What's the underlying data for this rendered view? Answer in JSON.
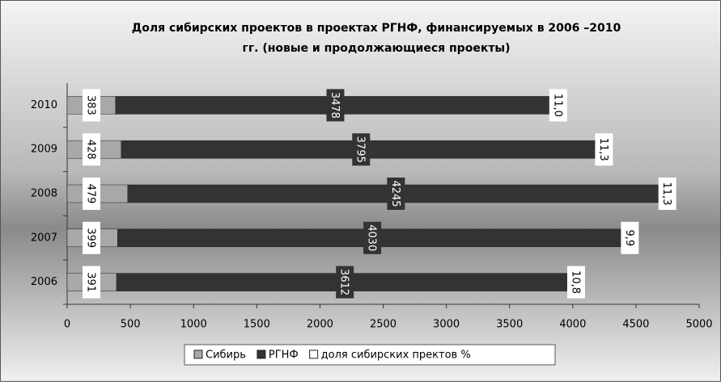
{
  "chart_data": {
    "type": "stacked-barh",
    "title": [
      "Доля сибирских проектов в проектах РГНФ, финансируемых в 2006 –2010",
      "гг. (новые и продолжающиеся проекты)"
    ],
    "categories": [
      "2006",
      "2007",
      "2008",
      "2009",
      "2010"
    ],
    "series": [
      {
        "name": "Сибирь",
        "color": "#a8a8a8",
        "values": [
          391,
          399,
          479,
          428,
          383
        ]
      },
      {
        "name": "РГНФ",
        "color": "#333333",
        "values": [
          3612,
          4030,
          4245,
          3795,
          3478
        ]
      },
      {
        "name": "доля сибирских пректов %",
        "color": "#ffffff",
        "values": [
          10.8,
          9.9,
          11.3,
          11.3,
          11.0
        ],
        "value_labels": [
          "10,8",
          "9,9",
          "11,3",
          "11,3",
          "11,0"
        ]
      }
    ],
    "xlim": [
      0,
      5000
    ],
    "xticks": [
      0,
      500,
      1000,
      1500,
      2000,
      2500,
      3000,
      3500,
      4000,
      4500,
      5000
    ],
    "legend": "bottom"
  }
}
